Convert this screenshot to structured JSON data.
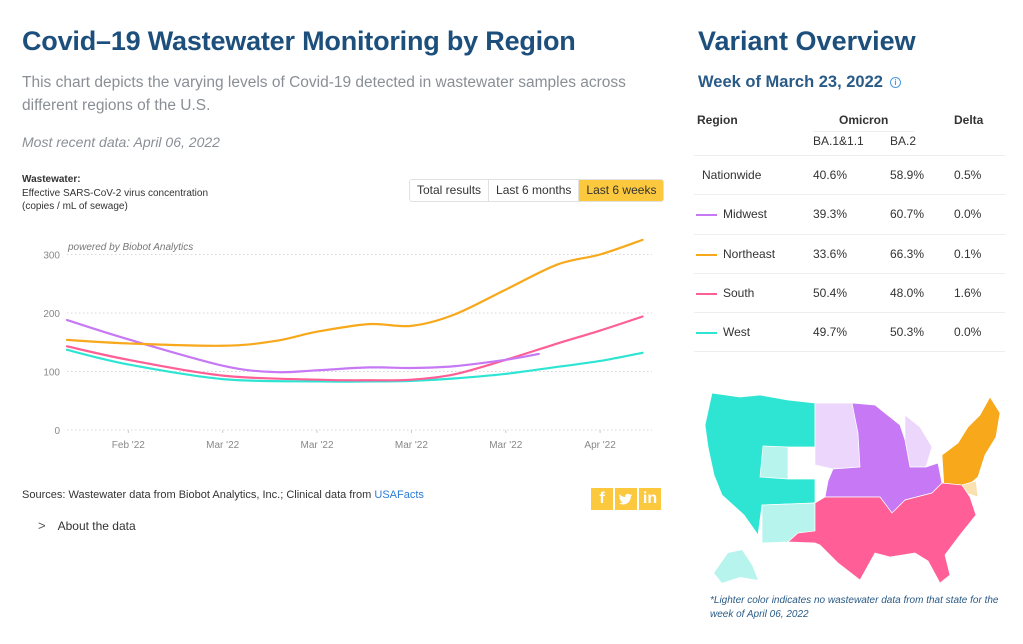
{
  "header": {
    "title": "Covid–19 Wastewater Monitoring by Region",
    "description": "This chart depicts the varying levels of Covid-19 detected in wastewater samples across different regions of the U.S.",
    "most_recent": "Most recent data: April 06, 2022"
  },
  "axis_label": {
    "bold": "Wastewater:",
    "line1": "Effective SARS-CoV-2 virus concentration",
    "line2": "(copies / mL of sewage)"
  },
  "range_toggle": {
    "options": [
      "Total results",
      "Last 6 months",
      "Last 6 weeks"
    ],
    "selected": "Last 6 weeks",
    "active_color": "#fbc83e"
  },
  "chart_data": {
    "type": "line",
    "title": "",
    "xlabel": "",
    "ylabel": "Effective SARS-CoV-2 virus concentration (copies / mL of sewage)",
    "annotation": "powered by Biobot Analytics",
    "x_tick_labels": [
      "Feb '22",
      "Mar '22",
      "Mar '22",
      "Mar '22",
      "Mar '22",
      "Apr '22"
    ],
    "y_ticks": [
      0,
      100,
      200,
      300
    ],
    "ylim": [
      0,
      320
    ],
    "grid": true,
    "x_domain": [
      0,
      6.2
    ],
    "x_tick_positions": [
      0.65,
      1.65,
      2.65,
      3.65,
      4.65,
      5.65
    ],
    "series": [
      {
        "name": "Northeast",
        "color": "#f7a81b",
        "x": [
          0,
          0.65,
          1.65,
          2.2,
          2.65,
          3.2,
          3.65,
          4.1,
          4.65,
          5.2,
          5.65,
          6.1
        ],
        "values": [
          154,
          148,
          144,
          152,
          168,
          181,
          178,
          197,
          240,
          283,
          300,
          325
        ]
      },
      {
        "name": "Midwest",
        "color": "#c678f5",
        "x": [
          0,
          0.65,
          1.65,
          2.2,
          2.65,
          3.2,
          3.65,
          4.1,
          4.65,
          5.0
        ],
        "values": [
          188,
          155,
          110,
          99,
          102,
          107,
          106,
          109,
          120,
          130
        ]
      },
      {
        "name": "South",
        "color": "#ff5f96",
        "x": [
          0,
          0.65,
          1.65,
          2.65,
          3.2,
          3.65,
          4.1,
          4.65,
          5.2,
          5.65,
          6.1
        ],
        "values": [
          143,
          120,
          93,
          86,
          85,
          86,
          95,
          120,
          148,
          170,
          194
        ]
      },
      {
        "name": "West",
        "color": "#2ee5d3",
        "x": [
          0,
          0.65,
          1.65,
          2.65,
          3.2,
          3.65,
          4.1,
          4.65,
          5.2,
          5.65,
          6.1
        ],
        "values": [
          137,
          112,
          87,
          83,
          83,
          84,
          88,
          96,
          108,
          118,
          132
        ]
      }
    ]
  },
  "sources": {
    "label": "Sources:",
    "text": " Wastewater data from Biobot Analytics, Inc.; Clinical data from ",
    "link": "USAFacts"
  },
  "about": {
    "label": "About the data",
    "icon": "chevron-right-icon"
  },
  "social": {
    "facebook": "f",
    "linkedin": "in",
    "color": "#fbc83e"
  },
  "variant": {
    "title": "Variant Overview",
    "week": "Week of March 23, 2022",
    "columns": {
      "region": "Region",
      "omicron": "Omicron",
      "ba1": "BA.1&1.1",
      "ba2": "BA.2",
      "delta": "Delta"
    },
    "rows": [
      {
        "region": "Nationwide",
        "ba1": "40.6%",
        "ba2": "58.9%",
        "delta": "0.5%",
        "color": ""
      },
      {
        "region": "Midwest",
        "ba1": "39.3%",
        "ba2": "60.7%",
        "delta": "0.0%",
        "color": "#c678f5"
      },
      {
        "region": "Northeast",
        "ba1": "33.6%",
        "ba2": "66.3%",
        "delta": "0.1%",
        "color": "#f7a81b"
      },
      {
        "region": "South",
        "ba1": "50.4%",
        "ba2": "48.0%",
        "delta": "1.6%",
        "color": "#ff5f96"
      },
      {
        "region": "West",
        "ba1": "49.7%",
        "ba2": "50.3%",
        "delta": "0.0%",
        "color": "#2ee5d3"
      }
    ]
  },
  "map": {
    "regions": [
      {
        "name": "West",
        "color": "#2ee5d3",
        "light_color": "#b8f4ee"
      },
      {
        "name": "Midwest",
        "color": "#c678f5",
        "light_color": "#ecd6fb"
      },
      {
        "name": "Northeast",
        "color": "#f7a81b",
        "light_color": "#fbe0b0"
      },
      {
        "name": "South",
        "color": "#ff5f96",
        "light_color": "#ffc3d8"
      }
    ],
    "note": "*Lighter color indicates no wastewater data from that state for the week of April 06, 2022"
  }
}
